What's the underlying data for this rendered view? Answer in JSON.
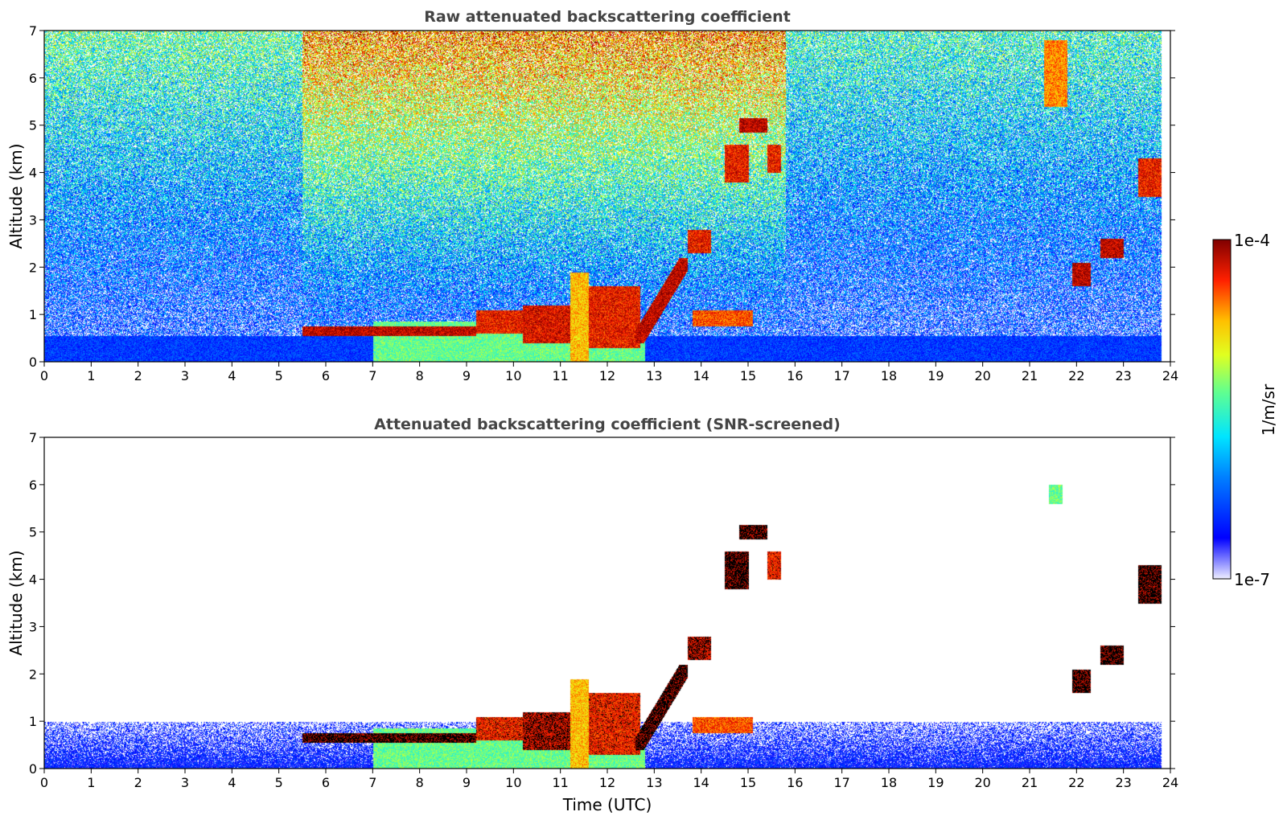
{
  "chart_data": [
    {
      "type": "heatmap",
      "title": "Raw attenuated backscattering coefficient",
      "xlabel": "",
      "ylabel": "Altitude (km)",
      "xlim": [
        0,
        24
      ],
      "ylim": [
        0,
        7
      ],
      "x_ticks": [
        "0",
        "1",
        "2",
        "3",
        "4",
        "5",
        "6",
        "7",
        "8",
        "9",
        "10",
        "11",
        "12",
        "13",
        "14",
        "15",
        "16",
        "17",
        "18",
        "19",
        "20",
        "21",
        "22",
        "23",
        "24"
      ],
      "y_ticks": [
        "0",
        "1",
        "2",
        "3",
        "4",
        "5",
        "6",
        "7"
      ],
      "noise_mode": "raw",
      "noise_background_windows": [
        {
          "t0": 0.0,
          "t1": 5.5,
          "level": 0.48
        },
        {
          "t0": 5.5,
          "t1": 15.8,
          "level": 0.72
        },
        {
          "t0": 15.8,
          "t1": 23.8,
          "level": 0.44
        }
      ],
      "features": [
        {
          "kind": "boundary_layer",
          "t0": 0.0,
          "t1": 23.8,
          "z0": 0.0,
          "z1": 0.55,
          "level": 0.2
        },
        {
          "kind": "aerosol_layer",
          "t0": 7.0,
          "t1": 12.8,
          "z0": 0.0,
          "z1": 0.85,
          "level": 0.55
        },
        {
          "kind": "cloud_layer",
          "t0": 5.5,
          "t1": 9.2,
          "z0": 0.55,
          "z1": 0.75,
          "level": 0.95
        },
        {
          "kind": "cloud",
          "t0": 9.2,
          "t1": 10.2,
          "z0": 0.6,
          "z1": 1.1,
          "level": 0.9
        },
        {
          "kind": "cloud",
          "t0": 10.2,
          "t1": 11.2,
          "z0": 0.4,
          "z1": 1.2,
          "level": 0.92
        },
        {
          "kind": "convective_plume",
          "t0": 11.2,
          "t1": 11.6,
          "z0": 0.0,
          "z1": 1.9,
          "level": 0.75
        },
        {
          "kind": "cloud",
          "t0": 11.6,
          "t1": 12.7,
          "z0": 0.3,
          "z1": 1.6,
          "level": 0.9
        },
        {
          "kind": "rising_layer",
          "t0": 12.6,
          "t1": 13.7,
          "z0": 0.4,
          "z1": 2.2,
          "level": 0.95
        },
        {
          "kind": "cloud",
          "t0": 13.7,
          "t1": 14.2,
          "z0": 2.3,
          "z1": 2.8,
          "level": 0.9
        },
        {
          "kind": "cloud",
          "t0": 14.5,
          "t1": 15.0,
          "z0": 3.8,
          "z1": 4.6,
          "level": 0.9
        },
        {
          "kind": "cloud",
          "t0": 14.8,
          "t1": 15.4,
          "z0": 4.85,
          "z1": 5.15,
          "level": 0.95
        },
        {
          "kind": "cloud",
          "t0": 15.4,
          "t1": 15.7,
          "z0": 4.0,
          "z1": 4.6,
          "level": 0.9
        },
        {
          "kind": "cloud",
          "t0": 13.8,
          "t1": 15.1,
          "z0": 0.75,
          "z1": 1.1,
          "level": 0.85
        },
        {
          "kind": "cloud",
          "t0": 21.3,
          "t1": 21.8,
          "z0": 5.4,
          "z1": 6.8,
          "level": 0.8
        },
        {
          "kind": "cloud",
          "t0": 21.9,
          "t1": 22.3,
          "z0": 1.6,
          "z1": 2.1,
          "level": 0.95
        },
        {
          "kind": "cloud",
          "t0": 22.5,
          "t1": 23.0,
          "z0": 2.2,
          "z1": 2.6,
          "level": 0.95
        },
        {
          "kind": "cloud",
          "t0": 23.3,
          "t1": 23.8,
          "z0": 3.5,
          "z1": 4.3,
          "level": 0.9
        }
      ]
    },
    {
      "type": "heatmap",
      "title": "Attenuated backscattering coefficient (SNR-screened)",
      "xlabel": "Time (UTC)",
      "ylabel": "Altitude (km)",
      "xlim": [
        0,
        24
      ],
      "ylim": [
        0,
        7
      ],
      "x_ticks": [
        "0",
        "1",
        "2",
        "3",
        "4",
        "5",
        "6",
        "7",
        "8",
        "9",
        "10",
        "11",
        "12",
        "13",
        "14",
        "15",
        "16",
        "17",
        "18",
        "19",
        "20",
        "21",
        "22",
        "23",
        "24"
      ],
      "y_ticks": [
        "0",
        "1",
        "2",
        "3",
        "4",
        "5",
        "6",
        "7"
      ],
      "noise_mode": "screened",
      "features": [
        {
          "kind": "boundary_layer",
          "t0": 0.0,
          "t1": 23.8,
          "z0": 0.0,
          "z1": 1.0,
          "level": 0.15
        },
        {
          "kind": "aerosol_layer",
          "t0": 7.0,
          "t1": 12.8,
          "z0": 0.0,
          "z1": 0.85,
          "level": 0.55
        },
        {
          "kind": "cloud_layer",
          "t0": 5.5,
          "t1": 9.2,
          "z0": 0.55,
          "z1": 0.75,
          "level": 1.0
        },
        {
          "kind": "cloud",
          "t0": 9.2,
          "t1": 10.2,
          "z0": 0.6,
          "z1": 1.1,
          "level": 0.9
        },
        {
          "kind": "cloud",
          "t0": 10.2,
          "t1": 11.2,
          "z0": 0.4,
          "z1": 1.2,
          "level": 0.95
        },
        {
          "kind": "convective_plume",
          "t0": 11.2,
          "t1": 11.6,
          "z0": 0.0,
          "z1": 1.9,
          "level": 0.75
        },
        {
          "kind": "cloud",
          "t0": 11.6,
          "t1": 12.7,
          "z0": 0.3,
          "z1": 1.6,
          "level": 0.9
        },
        {
          "kind": "rising_layer",
          "t0": 12.6,
          "t1": 13.7,
          "z0": 0.4,
          "z1": 2.2,
          "level": 1.0
        },
        {
          "kind": "cloud",
          "t0": 13.7,
          "t1": 14.2,
          "z0": 2.3,
          "z1": 2.8,
          "level": 0.95
        },
        {
          "kind": "cloud",
          "t0": 14.5,
          "t1": 15.0,
          "z0": 3.8,
          "z1": 4.6,
          "level": 1.0
        },
        {
          "kind": "cloud",
          "t0": 14.8,
          "t1": 15.4,
          "z0": 4.85,
          "z1": 5.15,
          "level": 1.0
        },
        {
          "kind": "cloud",
          "t0": 15.4,
          "t1": 15.7,
          "z0": 4.0,
          "z1": 4.6,
          "level": 0.9
        },
        {
          "kind": "cloud",
          "t0": 13.8,
          "t1": 15.1,
          "z0": 0.75,
          "z1": 1.1,
          "level": 0.85
        },
        {
          "kind": "cloud",
          "t0": 21.4,
          "t1": 21.7,
          "z0": 5.6,
          "z1": 6.0,
          "level": 0.55
        },
        {
          "kind": "cloud",
          "t0": 21.9,
          "t1": 22.3,
          "z0": 1.6,
          "z1": 2.1,
          "level": 1.0
        },
        {
          "kind": "cloud",
          "t0": 22.5,
          "t1": 23.0,
          "z0": 2.2,
          "z1": 2.6,
          "level": 1.0
        },
        {
          "kind": "cloud",
          "t0": 23.3,
          "t1": 23.8,
          "z0": 3.5,
          "z1": 4.3,
          "level": 1.0
        }
      ]
    }
  ],
  "colorbar": {
    "label": "1/m/sr",
    "max_label": "1e-4",
    "min_label": "1e-7",
    "colormap": "jet"
  }
}
